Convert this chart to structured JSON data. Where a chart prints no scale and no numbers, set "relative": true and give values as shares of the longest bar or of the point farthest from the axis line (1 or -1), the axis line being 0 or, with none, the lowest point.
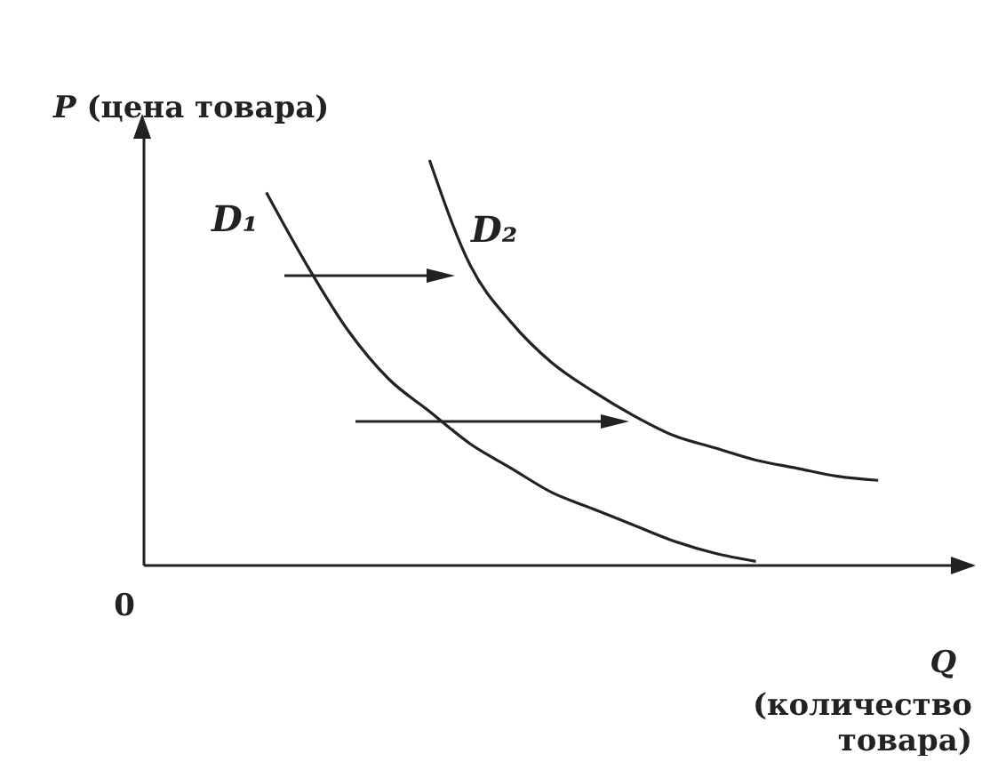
{
  "chart_data": {
    "type": "line",
    "relative": true,
    "marker": "none",
    "xlabel": "Q (количество товара)",
    "ylabel": "P (цена товара)",
    "annotations": [
      "0"
    ],
    "categories": [
      null,
      null,
      null,
      null,
      null,
      null,
      null,
      null,
      null,
      null,
      null,
      null,
      null,
      null,
      null,
      null,
      null,
      null,
      null,
      null,
      null
    ],
    "series": [
      {
        "name": "D₁",
        "color": "#222222",
        "values": [
          null,
          null,
          null,
          0.92,
          0.74,
          0.58,
          0.46,
          0.38,
          0.3,
          0.24,
          0.18,
          0.14,
          0.1,
          0.06,
          0.03,
          0.01,
          null,
          null,
          null,
          null,
          null
        ]
      },
      {
        "name": "D₂",
        "color": "#222222",
        "values": [
          null,
          null,
          null,
          null,
          null,
          null,
          null,
          1.0,
          0.74,
          0.6,
          0.5,
          0.43,
          0.37,
          0.32,
          0.29,
          0.26,
          0.24,
          0.22,
          0.21,
          null,
          null
        ]
      }
    ]
  }
}
